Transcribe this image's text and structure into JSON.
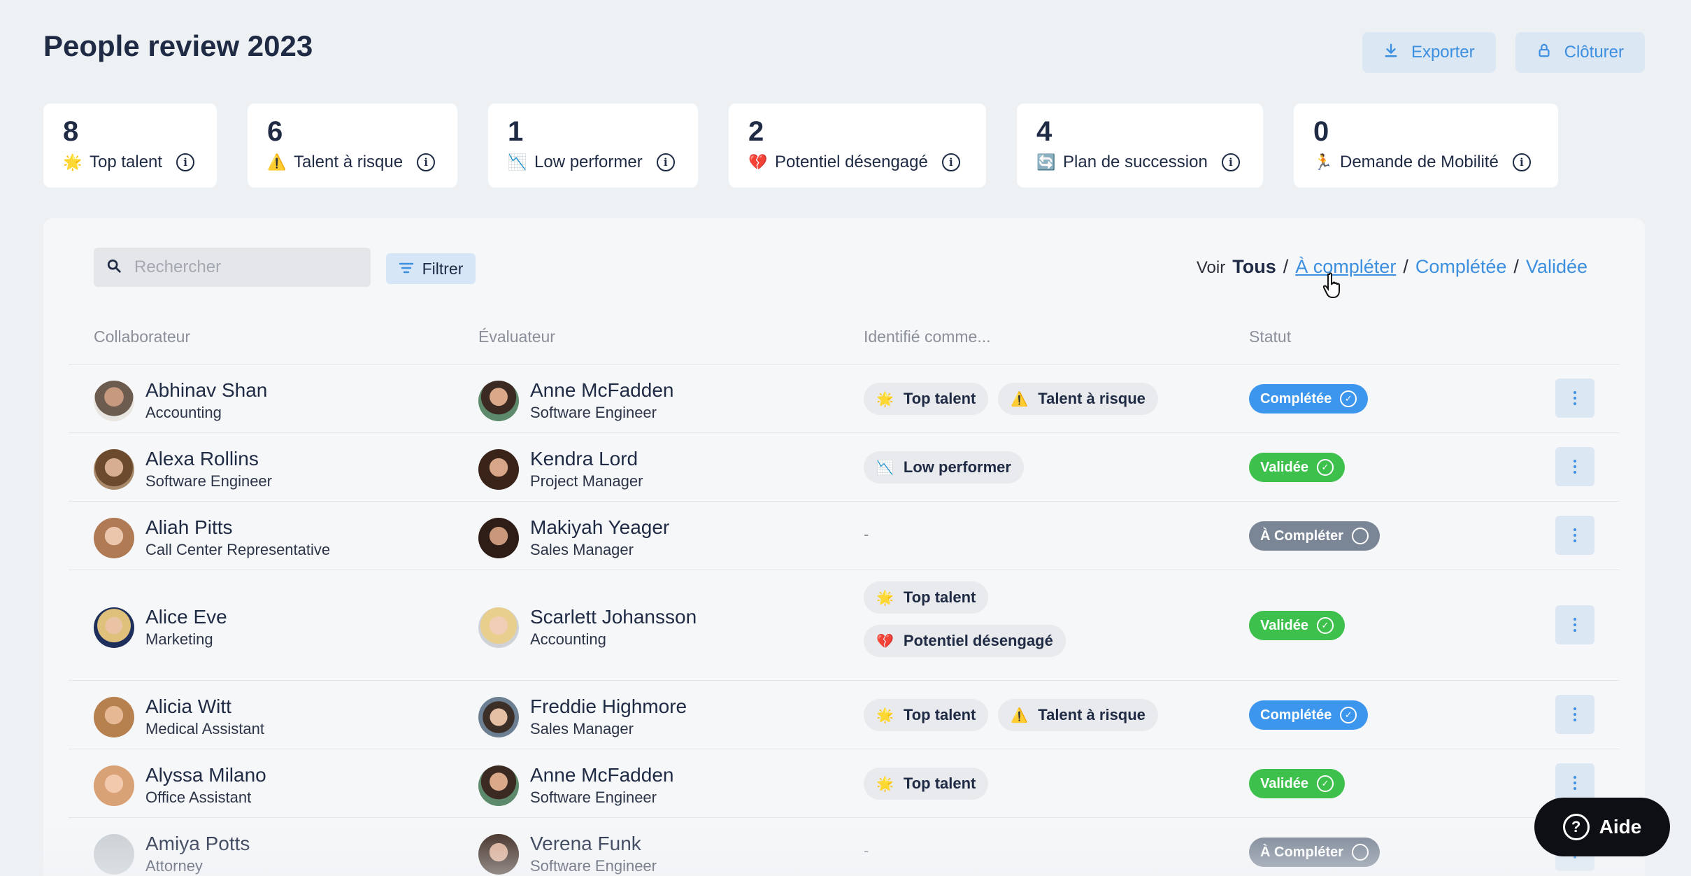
{
  "page_title": "People review 2023",
  "actions": {
    "export_label": "Exporter",
    "close_label": "Clôturer"
  },
  "stats": [
    {
      "count": "8",
      "label": "Top talent",
      "emoji": "🌟"
    },
    {
      "count": "6",
      "label": "Talent à risque",
      "emoji": "⚠️"
    },
    {
      "count": "1",
      "label": "Low performer",
      "emoji": "📉"
    },
    {
      "count": "2",
      "label": "Potentiel désengagé",
      "emoji": "💔"
    },
    {
      "count": "4",
      "label": "Plan de succession",
      "emoji": "🔄"
    },
    {
      "count": "0",
      "label": "Demande de Mobilité",
      "emoji": "🏃"
    }
  ],
  "search": {
    "placeholder": "Rechercher"
  },
  "filter_label": "Filtrer",
  "view": {
    "prefix": "Voir",
    "all": "Tous",
    "to_complete": "À compléter",
    "completed": "Complétée",
    "validated": "Validée",
    "sep": "/"
  },
  "columns": {
    "collaborator": "Collaborateur",
    "evaluator": "Évaluateur",
    "identified": "Identifié comme...",
    "status": "Statut"
  },
  "rows": [
    {
      "name": "Abhinav Shan",
      "dept": "Accounting",
      "ev_name": "Anne McFadden",
      "ev_role": "Software Engineer",
      "tags": [
        "Top talent",
        "Talent à risque"
      ],
      "status": "Complétée"
    },
    {
      "name": "Alexa Rollins",
      "dept": "Software Engineer",
      "ev_name": "Kendra Lord",
      "ev_role": "Project Manager",
      "tags": [
        "Low performer"
      ],
      "status": "Validée"
    },
    {
      "name": "Aliah Pitts",
      "dept": "Call Center Representative",
      "ev_name": "Makiyah Yeager",
      "ev_role": "Sales Manager",
      "tags": [],
      "status": "À Compléter"
    },
    {
      "name": "Alice Eve",
      "dept": "Marketing",
      "ev_name": "Scarlett Johansson",
      "ev_role": "Accounting",
      "tags": [
        "Top talent",
        "Potentiel désengagé"
      ],
      "status": "Validée"
    },
    {
      "name": "Alicia Witt",
      "dept": "Medical Assistant",
      "ev_name": "Freddie Highmore",
      "ev_role": "Sales Manager",
      "tags": [
        "Top talent",
        "Talent à risque"
      ],
      "status": "Complétée"
    },
    {
      "name": "Alyssa Milano",
      "dept": "Office Assistant",
      "ev_name": "Anne McFadden",
      "ev_role": "Software Engineer",
      "tags": [
        "Top talent"
      ],
      "status": "Validée"
    },
    {
      "name": "Amiya Potts",
      "dept": "Attorney",
      "ev_name": "Verena Funk",
      "ev_role": "Software Engineer",
      "tags": [],
      "status": "À Compléter"
    }
  ],
  "empty_tag": "-",
  "help_label": "Aide",
  "colors": {
    "accent": "#3d8fe0",
    "status_completee": "#3d96ee",
    "status_validee": "#3dc04c",
    "status_acompleter": "#7a8595"
  }
}
